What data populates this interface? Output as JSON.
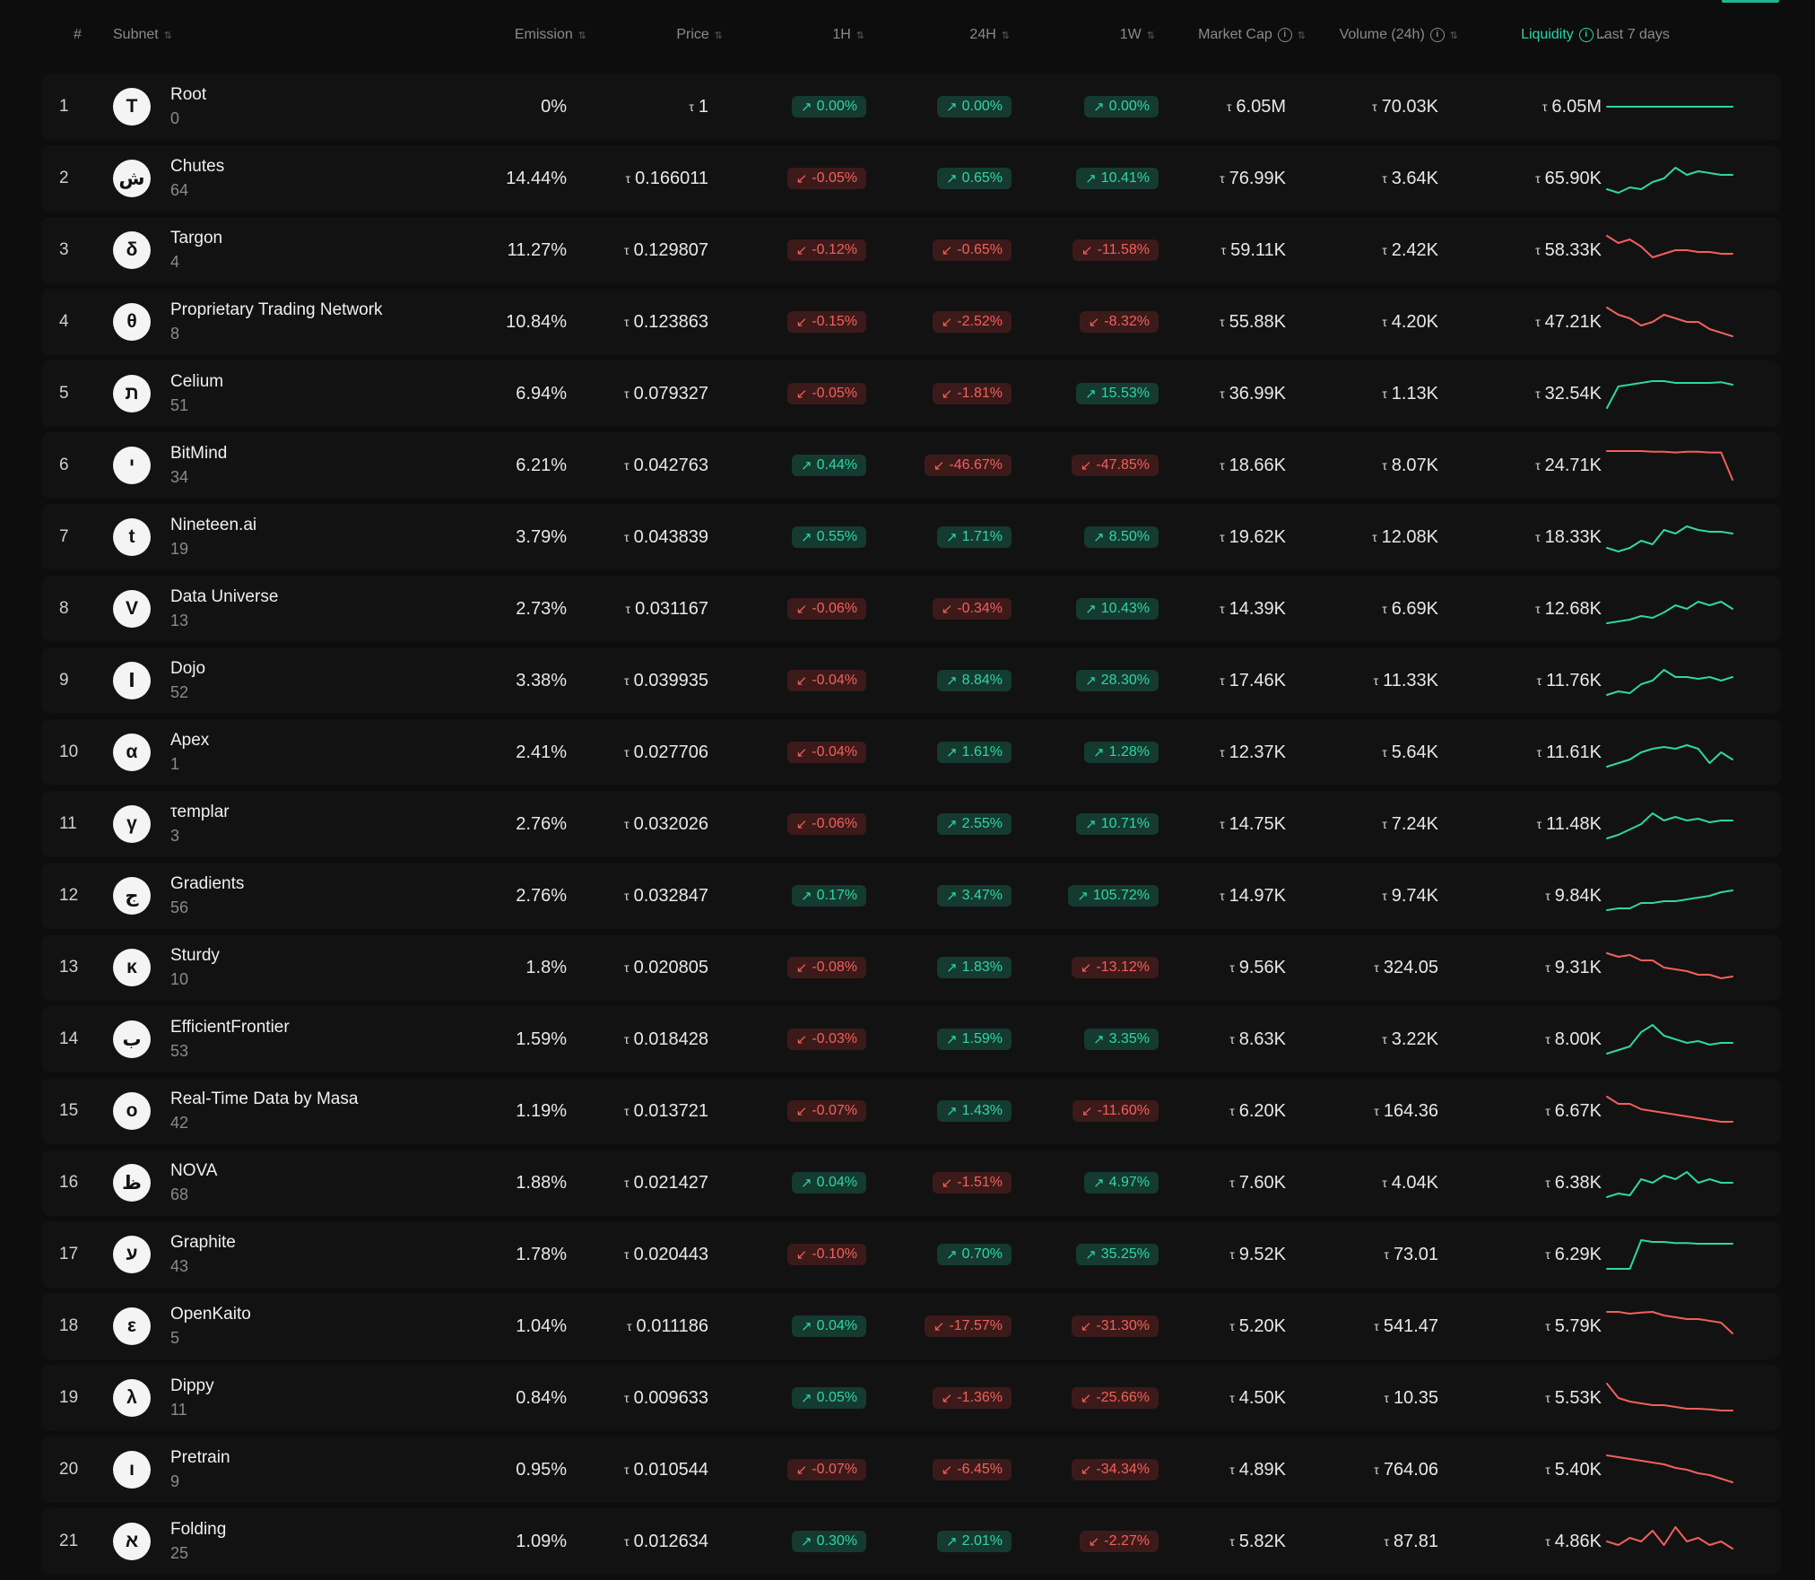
{
  "colors": {
    "up": "#30d6a4",
    "down": "#f2605a",
    "accent": "#2ed3a6"
  },
  "header": {
    "rank": "#",
    "subnet": "Subnet",
    "emission": "Emission",
    "price": "Price",
    "h1": "1H",
    "h24": "24H",
    "w1": "1W",
    "market_cap": "Market Cap",
    "volume": "Volume (24h)",
    "liquidity": "Liquidity",
    "last7": "Last 7 days"
  },
  "tao_symbol": "τ",
  "rows": [
    {
      "rank": "1",
      "icon": "T",
      "name": "Root",
      "id": "0",
      "emission": "0%",
      "price": "1",
      "h1": "0.00%",
      "h1_dir": "up",
      "h24": "0.00%",
      "h24_dir": "up",
      "w1": "0.00%",
      "w1_dir": "up",
      "mcap": "6.05M",
      "vol": "70.03K",
      "liq": "6.05M",
      "trend": "flat",
      "spark": [
        5,
        5,
        5,
        5,
        5,
        5,
        5,
        5,
        5,
        5,
        5,
        5
      ]
    },
    {
      "rank": "2",
      "icon": "ش",
      "name": "Chutes",
      "id": "64",
      "emission": "14.44%",
      "price": "0.166011",
      "h1": "-0.05%",
      "h1_dir": "down",
      "h24": "0.65%",
      "h24_dir": "up",
      "w1": "10.41%",
      "w1_dir": "up",
      "mcap": "76.99K",
      "vol": "3.64K",
      "liq": "65.90K",
      "trend": "up",
      "spark": [
        2,
        1,
        2.5,
        2,
        4,
        5,
        8,
        6,
        7,
        6.5,
        6,
        6
      ]
    },
    {
      "rank": "3",
      "icon": "δ",
      "name": "Targon",
      "id": "4",
      "emission": "11.27%",
      "price": "0.129807",
      "h1": "-0.12%",
      "h1_dir": "down",
      "h24": "-0.65%",
      "h24_dir": "down",
      "w1": "-11.58%",
      "w1_dir": "down",
      "mcap": "59.11K",
      "vol": "2.42K",
      "liq": "58.33K",
      "trend": "down",
      "spark": [
        9,
        7,
        8,
        6,
        3,
        4,
        5,
        5,
        4.5,
        4.5,
        4,
        4
      ]
    },
    {
      "rank": "4",
      "icon": "θ",
      "name": "Proprietary Trading Network",
      "id": "8",
      "emission": "10.84%",
      "price": "0.123863",
      "h1": "-0.15%",
      "h1_dir": "down",
      "h24": "-2.52%",
      "h24_dir": "down",
      "w1": "-8.32%",
      "w1_dir": "down",
      "mcap": "55.88K",
      "vol": "4.20K",
      "liq": "47.21K",
      "trend": "down",
      "spark": [
        9,
        7,
        6,
        4,
        5,
        7,
        6,
        5,
        5,
        3,
        2,
        1
      ]
    },
    {
      "rank": "5",
      "icon": "ת",
      "name": "Celium",
      "id": "51",
      "emission": "6.94%",
      "price": "0.079327",
      "h1": "-0.05%",
      "h1_dir": "down",
      "h24": "-1.81%",
      "h24_dir": "down",
      "w1": "15.53%",
      "w1_dir": "up",
      "mcap": "36.99K",
      "vol": "1.13K",
      "liq": "32.54K",
      "trend": "up",
      "spark": [
        1,
        7,
        7.5,
        8,
        8.5,
        8.5,
        8,
        8,
        8,
        8,
        8.2,
        7.5
      ]
    },
    {
      "rank": "6",
      "icon": "י",
      "name": "BitMind",
      "id": "34",
      "emission": "6.21%",
      "price": "0.042763",
      "h1": "0.44%",
      "h1_dir": "up",
      "h24": "-46.67%",
      "h24_dir": "down",
      "w1": "-47.85%",
      "w1_dir": "down",
      "mcap": "18.66K",
      "vol": "8.07K",
      "liq": "24.71K",
      "trend": "down",
      "spark": [
        9,
        9,
        9,
        9,
        8.8,
        8.8,
        8.6,
        8.8,
        8.8,
        8.6,
        8.6,
        1
      ]
    },
    {
      "rank": "7",
      "icon": "t",
      "name": "Nineteen.ai",
      "id": "19",
      "emission": "3.79%",
      "price": "0.043839",
      "h1": "0.55%",
      "h1_dir": "up",
      "h24": "1.71%",
      "h24_dir": "up",
      "w1": "8.50%",
      "w1_dir": "up",
      "mcap": "19.62K",
      "vol": "12.08K",
      "liq": "18.33K",
      "trend": "up",
      "spark": [
        2,
        1,
        2,
        4,
        3,
        7,
        6,
        8,
        7,
        6.5,
        6.5,
        6
      ]
    },
    {
      "rank": "8",
      "icon": "V",
      "name": "Data Universe",
      "id": "13",
      "emission": "2.73%",
      "price": "0.031167",
      "h1": "-0.06%",
      "h1_dir": "down",
      "h24": "-0.34%",
      "h24_dir": "down",
      "w1": "10.43%",
      "w1_dir": "up",
      "mcap": "14.39K",
      "vol": "6.69K",
      "liq": "12.68K",
      "trend": "up",
      "spark": [
        1,
        1.5,
        2,
        3,
        2.5,
        4,
        6,
        5,
        7,
        6,
        7,
        5
      ]
    },
    {
      "rank": "9",
      "icon": "ا",
      "name": "Dojo",
      "id": "52",
      "emission": "3.38%",
      "price": "0.039935",
      "h1": "-0.04%",
      "h1_dir": "down",
      "h24": "8.84%",
      "h24_dir": "up",
      "w1": "28.30%",
      "w1_dir": "up",
      "mcap": "17.46K",
      "vol": "11.33K",
      "liq": "11.76K",
      "trend": "up",
      "spark": [
        1,
        2,
        1.5,
        4,
        5,
        8,
        6,
        6,
        5.5,
        6,
        5,
        6
      ]
    },
    {
      "rank": "10",
      "icon": "α",
      "name": "Apex",
      "id": "1",
      "emission": "2.41%",
      "price": "0.027706",
      "h1": "-0.04%",
      "h1_dir": "down",
      "h24": "1.61%",
      "h24_dir": "up",
      "w1": "1.28%",
      "w1_dir": "up",
      "mcap": "12.37K",
      "vol": "5.64K",
      "liq": "11.61K",
      "trend": "up",
      "spark": [
        1,
        2,
        3,
        5,
        6,
        6.5,
        6,
        7,
        6,
        2,
        5,
        3
      ]
    },
    {
      "rank": "11",
      "icon": "γ",
      "name": "τemplar",
      "id": "3",
      "emission": "2.76%",
      "price": "0.032026",
      "h1": "-0.06%",
      "h1_dir": "down",
      "h24": "2.55%",
      "h24_dir": "up",
      "w1": "10.71%",
      "w1_dir": "up",
      "mcap": "14.75K",
      "vol": "7.24K",
      "liq": "11.48K",
      "trend": "up",
      "spark": [
        1,
        2,
        3.5,
        5,
        8,
        6,
        7,
        6,
        6.5,
        5.5,
        6,
        6
      ]
    },
    {
      "rank": "12",
      "icon": "ج",
      "name": "Gradients",
      "id": "56",
      "emission": "2.76%",
      "price": "0.032847",
      "h1": "0.17%",
      "h1_dir": "up",
      "h24": "3.47%",
      "h24_dir": "up",
      "w1": "105.72%",
      "w1_dir": "up",
      "mcap": "14.97K",
      "vol": "9.74K",
      "liq": "9.84K",
      "trend": "up",
      "spark": [
        1,
        1.5,
        1.5,
        3,
        3,
        3.5,
        3.5,
        4,
        4.5,
        5,
        6,
        6.5
      ]
    },
    {
      "rank": "13",
      "icon": "κ",
      "name": "Sturdy",
      "id": "10",
      "emission": "1.8%",
      "price": "0.020805",
      "h1": "-0.08%",
      "h1_dir": "down",
      "h24": "1.83%",
      "h24_dir": "up",
      "w1": "-13.12%",
      "w1_dir": "down",
      "mcap": "9.56K",
      "vol": "324.05",
      "liq": "9.31K",
      "trend": "down",
      "spark": [
        9,
        8,
        8.5,
        7,
        7,
        5,
        4.5,
        4,
        3,
        3,
        2,
        2.5
      ]
    },
    {
      "rank": "14",
      "icon": "ب",
      "name": "EfficientFrontier",
      "id": "53",
      "emission": "1.59%",
      "price": "0.018428",
      "h1": "-0.03%",
      "h1_dir": "down",
      "h24": "1.59%",
      "h24_dir": "up",
      "w1": "3.35%",
      "w1_dir": "up",
      "mcap": "8.63K",
      "vol": "3.22K",
      "liq": "8.00K",
      "trend": "up",
      "spark": [
        1,
        2,
        3,
        7,
        9,
        6,
        5,
        4,
        4.5,
        3.5,
        4,
        4
      ]
    },
    {
      "rank": "15",
      "icon": "ο",
      "name": "Real-Time Data by Masa",
      "id": "42",
      "emission": "1.19%",
      "price": "0.013721",
      "h1": "-0.07%",
      "h1_dir": "down",
      "h24": "1.43%",
      "h24_dir": "up",
      "w1": "-11.60%",
      "w1_dir": "down",
      "mcap": "6.20K",
      "vol": "164.36",
      "liq": "6.67K",
      "trend": "down",
      "spark": [
        9,
        7,
        7,
        5.5,
        5,
        4.5,
        4,
        3.5,
        3,
        2.5,
        2,
        2
      ]
    },
    {
      "rank": "16",
      "icon": "ظ",
      "name": "NOVA",
      "id": "68",
      "emission": "1.88%",
      "price": "0.021427",
      "h1": "0.04%",
      "h1_dir": "up",
      "h24": "-1.51%",
      "h24_dir": "down",
      "w1": "4.97%",
      "w1_dir": "up",
      "mcap": "7.60K",
      "vol": "4.04K",
      "liq": "6.38K",
      "trend": "up",
      "spark": [
        1,
        2,
        1.5,
        6,
        5,
        7,
        6,
        8,
        5,
        6,
        5,
        5
      ]
    },
    {
      "rank": "17",
      "icon": "ע",
      "name": "Graphite",
      "id": "43",
      "emission": "1.78%",
      "price": "0.020443",
      "h1": "-0.10%",
      "h1_dir": "down",
      "h24": "0.70%",
      "h24_dir": "up",
      "w1": "35.25%",
      "w1_dir": "up",
      "mcap": "9.52K",
      "vol": "73.01",
      "liq": "6.29K",
      "trend": "up",
      "spark": [
        1,
        1,
        1,
        9,
        8.5,
        8.5,
        8.2,
        8.2,
        8,
        8,
        8,
        8
      ]
    },
    {
      "rank": "18",
      "icon": "ε",
      "name": "OpenKaito",
      "id": "5",
      "emission": "1.04%",
      "price": "0.011186",
      "h1": "0.04%",
      "h1_dir": "up",
      "h24": "-17.57%",
      "h24_dir": "down",
      "w1": "-31.30%",
      "w1_dir": "down",
      "mcap": "5.20K",
      "vol": "541.47",
      "liq": "5.79K",
      "trend": "down",
      "spark": [
        9,
        9,
        8.5,
        8.8,
        9,
        8,
        7.5,
        7,
        7,
        6.5,
        6,
        3
      ]
    },
    {
      "rank": "19",
      "icon": "λ",
      "name": "Dippy",
      "id": "11",
      "emission": "0.84%",
      "price": "0.009633",
      "h1": "0.05%",
      "h1_dir": "up",
      "h24": "-1.36%",
      "h24_dir": "down",
      "w1": "-25.66%",
      "w1_dir": "down",
      "mcap": "4.50K",
      "vol": "10.35",
      "liq": "5.53K",
      "trend": "down",
      "spark": [
        9,
        5,
        4,
        3.5,
        3,
        3,
        2.5,
        2,
        2,
        1.8,
        1.5,
        1.5
      ]
    },
    {
      "rank": "20",
      "icon": "ı",
      "name": "Pretrain",
      "id": "9",
      "emission": "0.95%",
      "price": "0.010544",
      "h1": "-0.07%",
      "h1_dir": "down",
      "h24": "-6.45%",
      "h24_dir": "down",
      "w1": "-34.34%",
      "w1_dir": "down",
      "mcap": "4.89K",
      "vol": "764.06",
      "liq": "5.40K",
      "trend": "down",
      "spark": [
        9,
        8.5,
        8,
        7.5,
        7,
        6.5,
        5.5,
        5,
        4,
        3.5,
        2.5,
        1.5
      ]
    },
    {
      "rank": "21",
      "icon": "א",
      "name": "Folding",
      "id": "25",
      "emission": "1.09%",
      "price": "0.012634",
      "h1": "0.30%",
      "h1_dir": "up",
      "h24": "2.01%",
      "h24_dir": "up",
      "w1": "-2.27%",
      "w1_dir": "down",
      "mcap": "5.82K",
      "vol": "87.81",
      "liq": "4.86K",
      "trend": "down",
      "spark": [
        5,
        4,
        6,
        5,
        8,
        4,
        9,
        5,
        6,
        4,
        5,
        3
      ]
    }
  ]
}
